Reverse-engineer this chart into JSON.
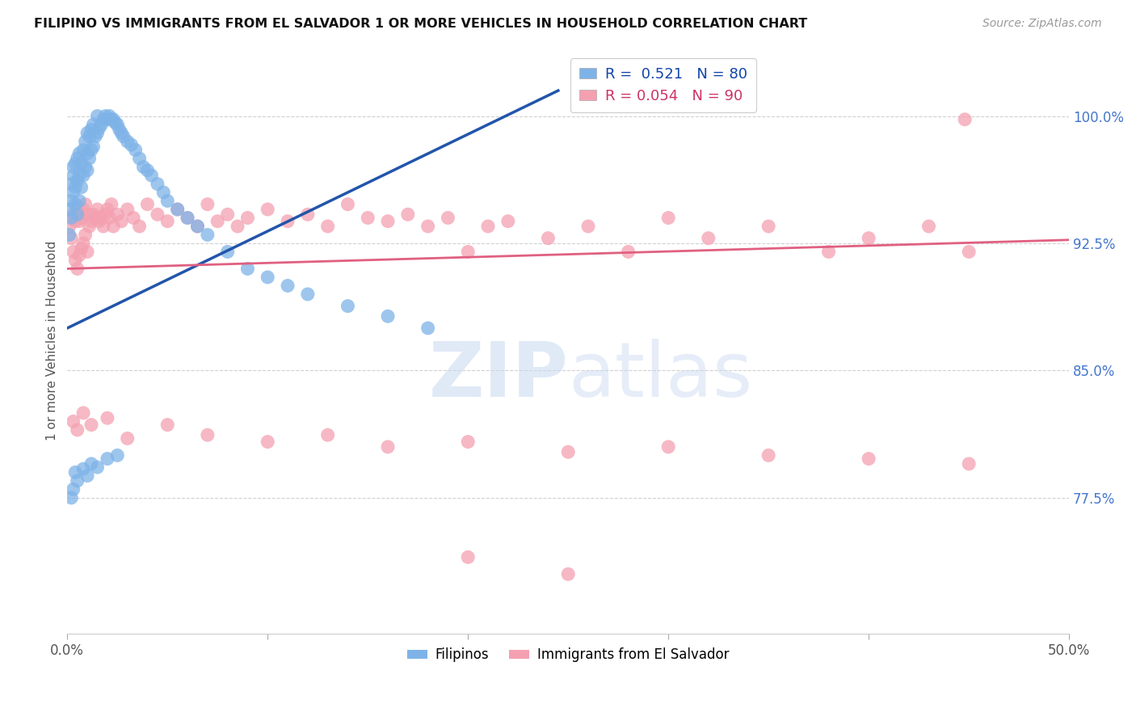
{
  "title": "FILIPINO VS IMMIGRANTS FROM EL SALVADOR 1 OR MORE VEHICLES IN HOUSEHOLD CORRELATION CHART",
  "source": "Source: ZipAtlas.com",
  "ylabel": "1 or more Vehicles in Household",
  "xlim": [
    0.0,
    0.5
  ],
  "ylim": [
    0.695,
    1.04
  ],
  "yticks": [
    0.775,
    0.85,
    0.925,
    1.0
  ],
  "ytick_labels": [
    "77.5%",
    "85.0%",
    "92.5%",
    "100.0%"
  ],
  "xticks": [
    0.0,
    0.5
  ],
  "xtick_labels": [
    "0.0%",
    "50.0%"
  ],
  "legend_r_blue": "R =  0.521",
  "legend_n_blue": "N = 80",
  "legend_r_pink": "R = 0.054",
  "legend_n_pink": "N = 90",
  "blue_color": "#7EB3E8",
  "pink_color": "#F4A0B0",
  "blue_line_color": "#2255AA",
  "pink_line_color": "#E06080",
  "blue_line_x": [
    0.0,
    0.245
  ],
  "blue_line_y": [
    0.875,
    1.015
  ],
  "pink_line_x": [
    0.0,
    0.5
  ],
  "pink_line_y": [
    0.91,
    0.927
  ],
  "blue_x": [
    0.001,
    0.001,
    0.002,
    0.002,
    0.002,
    0.003,
    0.003,
    0.003,
    0.004,
    0.004,
    0.004,
    0.005,
    0.005,
    0.005,
    0.006,
    0.006,
    0.006,
    0.007,
    0.007,
    0.008,
    0.008,
    0.009,
    0.009,
    0.01,
    0.01,
    0.01,
    0.011,
    0.011,
    0.012,
    0.012,
    0.013,
    0.013,
    0.014,
    0.015,
    0.015,
    0.016,
    0.017,
    0.018,
    0.019,
    0.02,
    0.021,
    0.022,
    0.023,
    0.024,
    0.025,
    0.026,
    0.027,
    0.028,
    0.03,
    0.032,
    0.034,
    0.036,
    0.038,
    0.04,
    0.042,
    0.045,
    0.048,
    0.05,
    0.055,
    0.06,
    0.065,
    0.07,
    0.08,
    0.09,
    0.1,
    0.11,
    0.12,
    0.14,
    0.16,
    0.18,
    0.002,
    0.003,
    0.004,
    0.005,
    0.008,
    0.01,
    0.012,
    0.015,
    0.02,
    0.025
  ],
  "blue_y": [
    0.93,
    0.945,
    0.95,
    0.96,
    0.94,
    0.955,
    0.965,
    0.97,
    0.948,
    0.958,
    0.972,
    0.942,
    0.962,
    0.975,
    0.95,
    0.965,
    0.978,
    0.958,
    0.972,
    0.965,
    0.98,
    0.97,
    0.985,
    0.968,
    0.978,
    0.99,
    0.975,
    0.988,
    0.98,
    0.992,
    0.982,
    0.995,
    0.988,
    0.99,
    1.0,
    0.993,
    0.995,
    0.998,
    1.0,
    0.998,
    1.0,
    0.998,
    0.998,
    0.996,
    0.995,
    0.992,
    0.99,
    0.988,
    0.985,
    0.983,
    0.98,
    0.975,
    0.97,
    0.968,
    0.965,
    0.96,
    0.955,
    0.95,
    0.945,
    0.94,
    0.935,
    0.93,
    0.92,
    0.91,
    0.905,
    0.9,
    0.895,
    0.888,
    0.882,
    0.875,
    0.775,
    0.78,
    0.79,
    0.785,
    0.792,
    0.788,
    0.795,
    0.793,
    0.798,
    0.8
  ],
  "pink_x": [
    0.001,
    0.002,
    0.003,
    0.003,
    0.004,
    0.004,
    0.005,
    0.005,
    0.006,
    0.006,
    0.007,
    0.007,
    0.008,
    0.008,
    0.009,
    0.009,
    0.01,
    0.01,
    0.011,
    0.012,
    0.013,
    0.014,
    0.015,
    0.016,
    0.017,
    0.018,
    0.019,
    0.02,
    0.021,
    0.022,
    0.023,
    0.025,
    0.027,
    0.03,
    0.033,
    0.036,
    0.04,
    0.045,
    0.05,
    0.055,
    0.06,
    0.065,
    0.07,
    0.075,
    0.08,
    0.085,
    0.09,
    0.1,
    0.11,
    0.12,
    0.13,
    0.14,
    0.15,
    0.16,
    0.17,
    0.18,
    0.19,
    0.2,
    0.21,
    0.22,
    0.24,
    0.26,
    0.28,
    0.3,
    0.32,
    0.35,
    0.38,
    0.4,
    0.43,
    0.45,
    0.003,
    0.005,
    0.008,
    0.012,
    0.02,
    0.03,
    0.05,
    0.07,
    0.1,
    0.13,
    0.16,
    0.2,
    0.25,
    0.3,
    0.35,
    0.4,
    0.45,
    0.2,
    0.25,
    0.448
  ],
  "pink_y": [
    0.935,
    0.928,
    0.92,
    0.942,
    0.915,
    0.938,
    0.91,
    0.945,
    0.918,
    0.938,
    0.922,
    0.94,
    0.925,
    0.945,
    0.93,
    0.948,
    0.92,
    0.942,
    0.935,
    0.938,
    0.942,
    0.94,
    0.945,
    0.938,
    0.94,
    0.935,
    0.942,
    0.945,
    0.94,
    0.948,
    0.935,
    0.942,
    0.938,
    0.945,
    0.94,
    0.935,
    0.948,
    0.942,
    0.938,
    0.945,
    0.94,
    0.935,
    0.948,
    0.938,
    0.942,
    0.935,
    0.94,
    0.945,
    0.938,
    0.942,
    0.935,
    0.948,
    0.94,
    0.938,
    0.942,
    0.935,
    0.94,
    0.92,
    0.935,
    0.938,
    0.928,
    0.935,
    0.92,
    0.94,
    0.928,
    0.935,
    0.92,
    0.928,
    0.935,
    0.92,
    0.82,
    0.815,
    0.825,
    0.818,
    0.822,
    0.81,
    0.818,
    0.812,
    0.808,
    0.812,
    0.805,
    0.808,
    0.802,
    0.805,
    0.8,
    0.798,
    0.795,
    0.74,
    0.73,
    0.998
  ]
}
